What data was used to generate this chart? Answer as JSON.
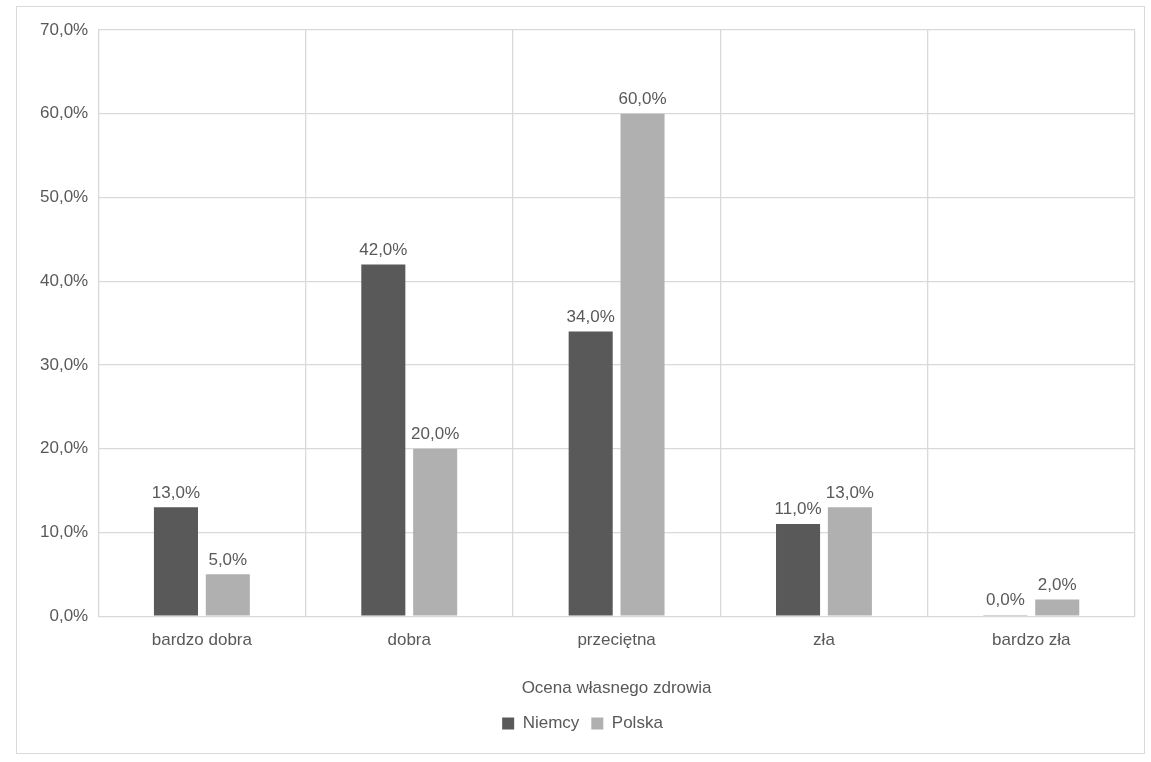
{
  "chart_data": {
    "type": "bar",
    "xlabel": "Ocena własnego zdrowia",
    "categories": [
      "bardzo dobra",
      "dobra",
      "przeciętna",
      "zła",
      "bardzo zła"
    ],
    "series": [
      {
        "name": "Niemcy",
        "color": "#595959",
        "values": [
          13,
          42,
          34,
          11,
          0
        ],
        "value_labels": [
          "13,0%",
          "42,0%",
          "34,0%",
          "11,0%",
          "0,0%"
        ]
      },
      {
        "name": "Polska",
        "color": "#b0b0b0",
        "values": [
          5,
          20,
          60,
          13,
          2
        ],
        "value_labels": [
          "5,0%",
          "20,0%",
          "60,0%",
          "13,0%",
          "2,0%"
        ]
      }
    ],
    "ylim": [
      0,
      70
    ],
    "yticks": [
      {
        "value": 0,
        "label": "0,0%"
      },
      {
        "value": 10,
        "label": "10,0%"
      },
      {
        "value": 20,
        "label": "20,0%"
      },
      {
        "value": 30,
        "label": "30,0%"
      },
      {
        "value": 40,
        "label": "40,0%"
      },
      {
        "value": 50,
        "label": "50,0%"
      },
      {
        "value": 60,
        "label": "60,0%"
      },
      {
        "value": 70,
        "label": "70,0%"
      }
    ],
    "grid": true,
    "legend": "bottom"
  }
}
